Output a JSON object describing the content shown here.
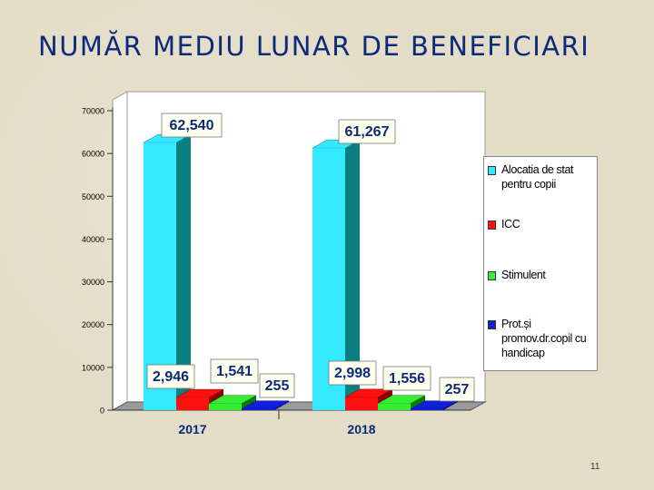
{
  "slide": {
    "title": "NUMĂR MEDIU LUNAR DE BENEFICIARI",
    "page_number": "11"
  },
  "chart_data": {
    "type": "bar",
    "style": "3d-clustered",
    "categories": [
      "2017",
      "2018"
    ],
    "series": [
      {
        "name": "Alocatia de stat pentru copii",
        "values": [
          62540,
          61267
        ],
        "labels": [
          "62,540",
          "61,267"
        ],
        "color": "#33e8ff",
        "side_color": "#0a7f7f"
      },
      {
        "name": "ICC",
        "values": [
          2946,
          2998
        ],
        "labels": [
          "2,946",
          "2,998"
        ],
        "color": "#ff1010",
        "side_color": "#8a0000"
      },
      {
        "name": "Stimulent",
        "values": [
          1541,
          1556
        ],
        "labels": [
          "1,541",
          "1,556"
        ],
        "color": "#33ee33",
        "side_color": "#0a7a0a"
      },
      {
        "name": "Prot.și promov.dr.copil cu handicap",
        "values": [
          255,
          257
        ],
        "labels": [
          "255",
          "257"
        ],
        "color": "#1020d8",
        "side_color": "#000880"
      }
    ],
    "ylim": [
      0,
      70000
    ],
    "y_ticks": [
      "0",
      "10000",
      "20000",
      "30000",
      "40000",
      "50000",
      "60000",
      "70000"
    ],
    "legend_position": "right",
    "grid": false,
    "data_label_style": "boxed-bold"
  }
}
